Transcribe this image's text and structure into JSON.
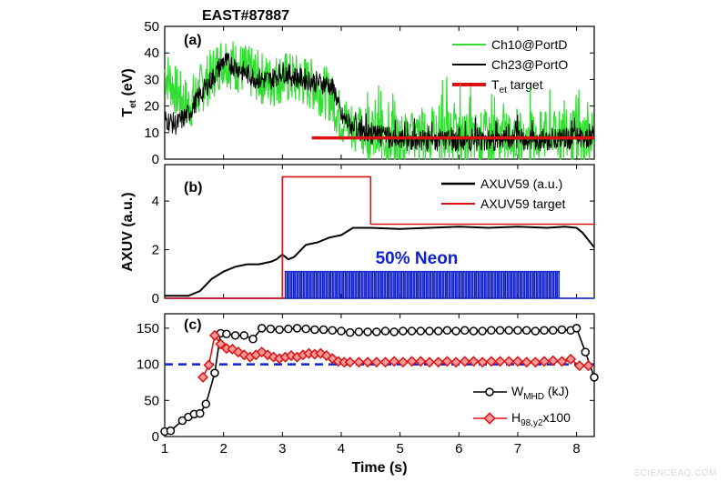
{
  "header": {
    "shot_title": "EAST#87887",
    "watermark": "SCIENCEAQ.COM"
  },
  "chart_data": [
    {
      "panel": "(a)",
      "type": "line",
      "ylabel": "T_et (eV)",
      "ylabel_main": "T",
      "ylabel_sub": "et",
      "ylabel_unit": " (eV)",
      "xlim": [
        1,
        8.3
      ],
      "ylim": [
        0,
        50
      ],
      "yticks": [
        0,
        10,
        20,
        30,
        40,
        50
      ],
      "xtick_labels_shown": false,
      "series": [
        {
          "name": "Ch10@PortD",
          "color": "#33dd33",
          "noise": 10,
          "x": [
            1.0,
            1.2,
            1.4,
            1.6,
            1.8,
            2.0,
            2.2,
            2.4,
            2.6,
            2.8,
            3.0,
            3.2,
            3.4,
            3.6,
            3.8,
            3.9,
            4.0,
            4.2,
            4.4,
            4.6,
            4.8,
            5.0,
            5.5,
            6.0,
            6.5,
            7.0,
            7.5,
            8.0,
            8.3
          ],
          "y": [
            33,
            25,
            20,
            26,
            32,
            38,
            35,
            33,
            31,
            29,
            31,
            30,
            29,
            27,
            24,
            20,
            15,
            12,
            10,
            9,
            8,
            8,
            8,
            8,
            8,
            8,
            8,
            9,
            9
          ]
        },
        {
          "name": "Ch23@PortO",
          "color": "#000000",
          "noise": 4,
          "x": [
            1.0,
            1.2,
            1.4,
            1.6,
            1.8,
            2.0,
            2.2,
            2.4,
            2.6,
            2.8,
            3.0,
            3.2,
            3.4,
            3.6,
            3.8,
            3.9,
            4.0,
            4.2,
            4.4,
            4.6,
            4.8,
            5.0,
            5.5,
            6.0,
            6.5,
            7.0,
            7.5,
            8.0,
            8.3
          ],
          "y": [
            15,
            13,
            17,
            24,
            30,
            37,
            35,
            32,
            30,
            30,
            33,
            31,
            30,
            29,
            28,
            25,
            16,
            12,
            10,
            9,
            8,
            7,
            7,
            7,
            7,
            7,
            7,
            8,
            8
          ]
        },
        {
          "name": "T_et target",
          "legend_main": "T",
          "legend_sub": "et",
          "legend_rest": " target",
          "color": "#dd1111",
          "x": [
            3.5,
            8.3
          ],
          "y": [
            8,
            8
          ]
        }
      ]
    },
    {
      "panel": "(b)",
      "type": "line",
      "ylabel": "AXUV (a.u.)",
      "xlim": [
        1,
        8.3
      ],
      "ylim": [
        0,
        5.5
      ],
      "yticks": [
        0,
        2,
        4
      ],
      "xtick_labels_shown": false,
      "annotation": "50% Neon",
      "neon_pulses": {
        "start": 3.05,
        "end": 7.7,
        "height": 1.1,
        "color": "#1122cc"
      },
      "series": [
        {
          "name": "AXUV59 (a.u.)",
          "color": "#000000",
          "x": [
            1.0,
            1.2,
            1.4,
            1.6,
            1.8,
            2.0,
            2.2,
            2.4,
            2.6,
            2.8,
            2.9,
            3.0,
            3.1,
            3.2,
            3.4,
            3.6,
            3.8,
            4.0,
            4.2,
            4.5,
            5.0,
            5.5,
            6.0,
            6.5,
            7.0,
            7.5,
            7.8,
            8.0,
            8.1,
            8.2,
            8.3
          ],
          "y": [
            0.1,
            0.1,
            0.1,
            0.3,
            0.8,
            1.1,
            1.3,
            1.4,
            1.4,
            1.5,
            1.6,
            1.8,
            1.6,
            1.7,
            2.2,
            2.3,
            2.5,
            2.6,
            2.9,
            2.9,
            2.85,
            2.9,
            2.95,
            2.9,
            2.95,
            2.9,
            2.95,
            2.9,
            2.7,
            2.4,
            2.1
          ]
        },
        {
          "name": "AXUV59 target",
          "color": "#dd1111",
          "x": [
            1.0,
            3.0,
            3.0,
            4.5,
            4.5,
            8.3
          ],
          "y": [
            0,
            0,
            5,
            5,
            3.05,
            3.05
          ]
        }
      ]
    },
    {
      "panel": "(c)",
      "type": "line",
      "xlabel": "Time (s)",
      "xlim": [
        1,
        8.3
      ],
      "ylim": [
        0,
        170
      ],
      "xticks": [
        1,
        2,
        3,
        4,
        5,
        6,
        7,
        8
      ],
      "yticks": [
        0,
        50,
        100,
        150
      ],
      "reference_line": {
        "y": 100,
        "color": "#1122cc"
      },
      "series": [
        {
          "name": "W_MHD (kJ)",
          "legend_main": "W",
          "legend_sub": "MHD",
          "legend_rest": " (kJ)",
          "color": "#000000",
          "marker": "circle",
          "x": [
            1.0,
            1.1,
            1.3,
            1.4,
            1.5,
            1.6,
            1.7,
            1.85,
            1.95,
            2.05,
            2.2,
            2.35,
            2.5,
            2.65,
            2.8,
            2.95,
            3.1,
            3.25,
            3.4,
            3.55,
            3.7,
            3.85,
            4.0,
            4.15,
            4.3,
            4.45,
            4.6,
            4.75,
            4.9,
            5.05,
            5.2,
            5.35,
            5.5,
            5.65,
            5.8,
            5.95,
            6.1,
            6.25,
            6.4,
            6.55,
            6.7,
            6.85,
            7.0,
            7.15,
            7.3,
            7.45,
            7.6,
            7.75,
            7.9,
            8.0,
            8.15,
            8.3
          ],
          "y": [
            7,
            8,
            22,
            27,
            31,
            32,
            45,
            88,
            143,
            142,
            140,
            140,
            135,
            150,
            149,
            148,
            149,
            150,
            149,
            148,
            148,
            147,
            146,
            144,
            145,
            145,
            145,
            146,
            145,
            146,
            146,
            146,
            146,
            146,
            147,
            146,
            147,
            146,
            146,
            147,
            147,
            147,
            147,
            147,
            146,
            147,
            147,
            148,
            147,
            150,
            117,
            82
          ]
        },
        {
          "name": "H_98,y2x100",
          "legend_main": "H",
          "legend_sub": "98,y2",
          "legend_rest": "x100",
          "color": "#dd1111",
          "marker": "diamond",
          "x": [
            1.65,
            1.75,
            1.85,
            1.95,
            2.05,
            2.15,
            2.25,
            2.35,
            2.45,
            2.55,
            2.65,
            2.75,
            2.85,
            2.95,
            3.05,
            3.15,
            3.25,
            3.35,
            3.45,
            3.55,
            3.65,
            3.75,
            3.85,
            3.95,
            4.05,
            4.15,
            4.3,
            4.45,
            4.6,
            4.75,
            4.9,
            5.05,
            5.2,
            5.35,
            5.5,
            5.65,
            5.8,
            5.95,
            6.1,
            6.25,
            6.4,
            6.55,
            6.7,
            6.85,
            7.0,
            7.15,
            7.3,
            7.45,
            7.6,
            7.75,
            7.9,
            8.05,
            8.2
          ],
          "y": [
            82,
            99,
            140,
            128,
            122,
            121,
            117,
            113,
            110,
            113,
            117,
            113,
            110,
            108,
            110,
            112,
            110,
            113,
            115,
            114,
            115,
            112,
            108,
            104,
            103,
            103,
            103,
            103,
            103,
            103,
            104,
            103,
            104,
            104,
            103,
            103,
            104,
            103,
            104,
            104,
            103,
            104,
            104,
            104,
            104,
            103,
            103,
            104,
            105,
            104,
            107,
            98,
            98
          ]
        }
      ]
    }
  ]
}
